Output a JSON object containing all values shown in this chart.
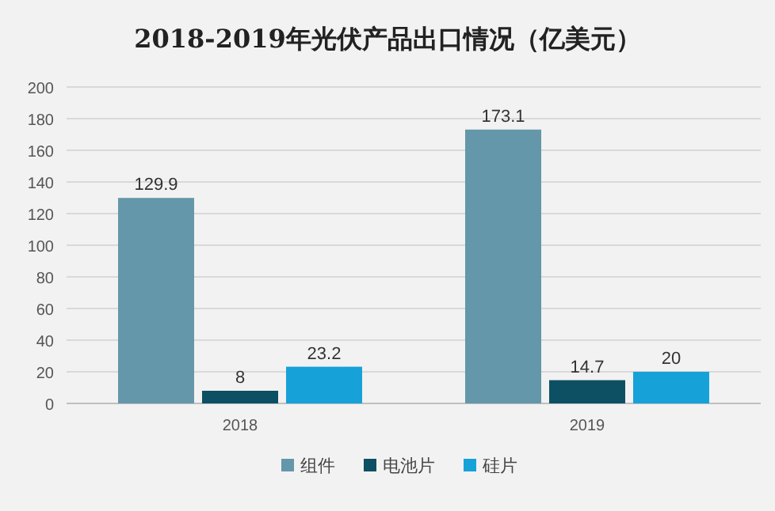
{
  "chart_data": {
    "type": "bar",
    "title": "2018-2019年光伏产品出口情况（亿美元）",
    "categories": [
      "2018",
      "2019"
    ],
    "series": [
      {
        "name": "组件",
        "color": "#6497a9",
        "values": [
          129.9,
          173.1
        ]
      },
      {
        "name": "电池片",
        "color": "#0d4f63",
        "values": [
          8,
          14.7
        ]
      },
      {
        "name": "硅片",
        "color": "#16a2d9",
        "values": [
          23.2,
          20
        ]
      }
    ],
    "ylim": [
      0,
      200
    ],
    "yticks": [
      0,
      20,
      40,
      60,
      80,
      100,
      120,
      140,
      160,
      180,
      200
    ],
    "grid": "y",
    "legend": "bottom",
    "data_labels": true
  }
}
